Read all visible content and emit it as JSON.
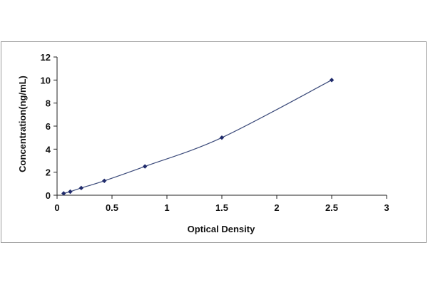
{
  "chart_data": {
    "type": "scatter",
    "xlabel": "Optical Density",
    "ylabel": "Concentration(ng/mL)",
    "xlim": [
      0,
      3
    ],
    "ylim": [
      0,
      12
    ],
    "x_ticks": [
      "0",
      "0.5",
      "1",
      "1.5",
      "2",
      "2.5",
      "3"
    ],
    "y_ticks": [
      "0",
      "2",
      "4",
      "6",
      "8",
      "10",
      "12"
    ],
    "grid": false,
    "legend": "none",
    "fit_line": true,
    "series": [
      {
        "x": [
          0.06,
          0.12,
          0.22,
          0.43,
          0.8,
          1.5,
          2.5
        ],
        "y": [
          0.16,
          0.31,
          0.63,
          1.25,
          2.5,
          5,
          10
        ]
      }
    ],
    "colors": {
      "marker": "#1f2a6b",
      "line": "#3b4a7a",
      "axis": "#222222",
      "frame": "#9a9a9a"
    }
  }
}
